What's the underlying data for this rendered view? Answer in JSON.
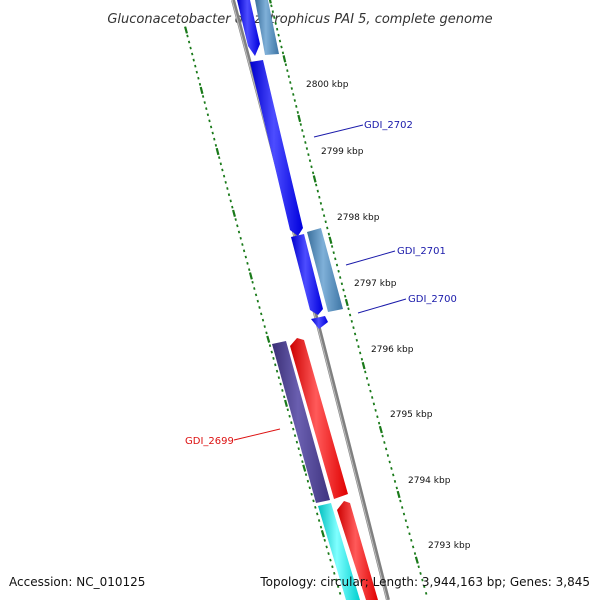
{
  "title": "Gluconacetobacter diazotrophicus PAI 5, complete genome",
  "footer": {
    "accession": "Accession: NC_010125",
    "summary": "Topology: circular; Length: 3,944,163 bp; Genes: 3,845"
  },
  "colors": {
    "backbone": "#808080",
    "tick": "#1a7a1a",
    "blue_gene": "#1a1aff",
    "steel_gene": "#4a86b8",
    "purple_gene": "#4b3f8c",
    "red_gene": "#ff1a1a",
    "cyan_gene": "#00e5e5",
    "blue_label": "#1a1aaa",
    "red_label": "#dd1111"
  },
  "ticks": [
    {
      "label": "2800 kbp"
    },
    {
      "label": "2799 kbp"
    },
    {
      "label": "2798 kbp"
    },
    {
      "label": "2797 kbp"
    },
    {
      "label": "2796 kbp"
    },
    {
      "label": "2795 kbp"
    },
    {
      "label": "2794 kbp"
    },
    {
      "label": "2793 kbp"
    }
  ],
  "gene_labels": [
    {
      "text": "GDI_2702",
      "color": "blue"
    },
    {
      "text": "GDI_2701",
      "color": "blue"
    },
    {
      "text": "GDI_2700",
      "color": "blue"
    },
    {
      "text": "GDI_2699",
      "color": "red"
    }
  ]
}
